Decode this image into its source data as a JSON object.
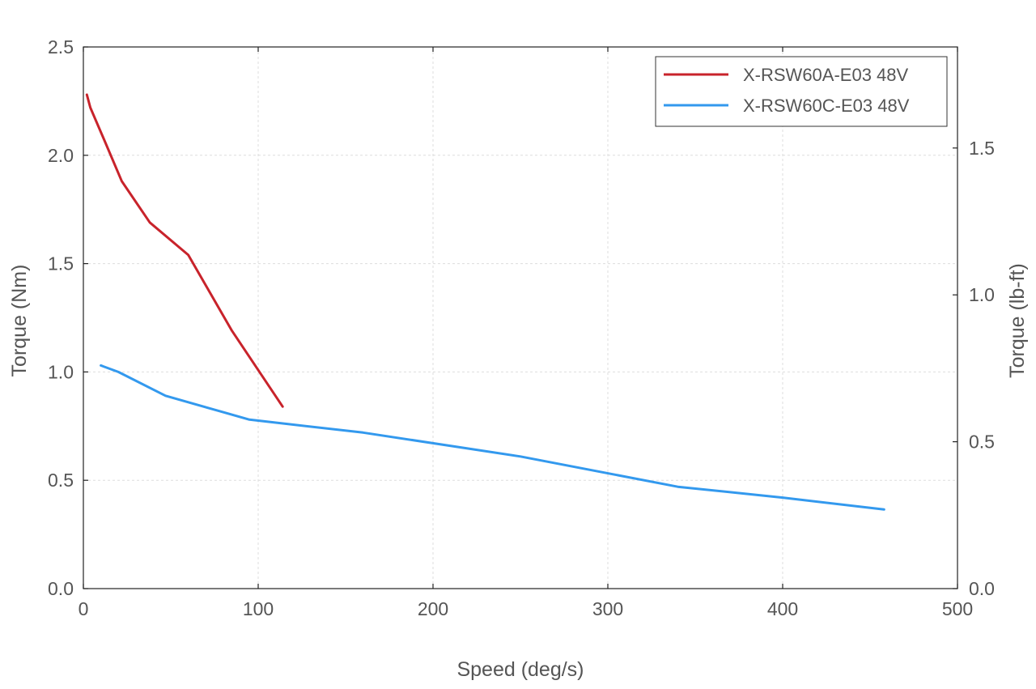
{
  "chart_data": {
    "type": "line",
    "xlabel": "Speed (deg/s)",
    "ylabel": "Torque (Nm)",
    "y2label": "Torque (lb-ft)",
    "xlim": [
      0,
      500
    ],
    "ylim": [
      0,
      2.5
    ],
    "y2lim": [
      0,
      1.844
    ],
    "x_ticks": [
      0,
      100,
      200,
      300,
      400,
      500
    ],
    "y_ticks": [
      "0.0",
      "0.5",
      "1.0",
      "1.5",
      "2.0",
      "2.5"
    ],
    "y2_ticks": [
      "0.0",
      "0.5",
      "1.0",
      "1.5"
    ],
    "grid": true,
    "legend_position": "top-right",
    "series": [
      {
        "name": "X-RSW60A-E03 48V",
        "color": "#c8232b",
        "points": [
          [
            2,
            2.28
          ],
          [
            4,
            2.22
          ],
          [
            12,
            2.07
          ],
          [
            22,
            1.88
          ],
          [
            38,
            1.69
          ],
          [
            60,
            1.54
          ],
          [
            85,
            1.19
          ],
          [
            114,
            0.84
          ]
        ]
      },
      {
        "name": "X-RSW60C-E03 48V",
        "color": "#3399ee",
        "points": [
          [
            10,
            1.03
          ],
          [
            20,
            1.0
          ],
          [
            47,
            0.89
          ],
          [
            95,
            0.78
          ],
          [
            160,
            0.72
          ],
          [
            250,
            0.61
          ],
          [
            340,
            0.47
          ],
          [
            400,
            0.42
          ],
          [
            458,
            0.365
          ]
        ]
      }
    ]
  }
}
